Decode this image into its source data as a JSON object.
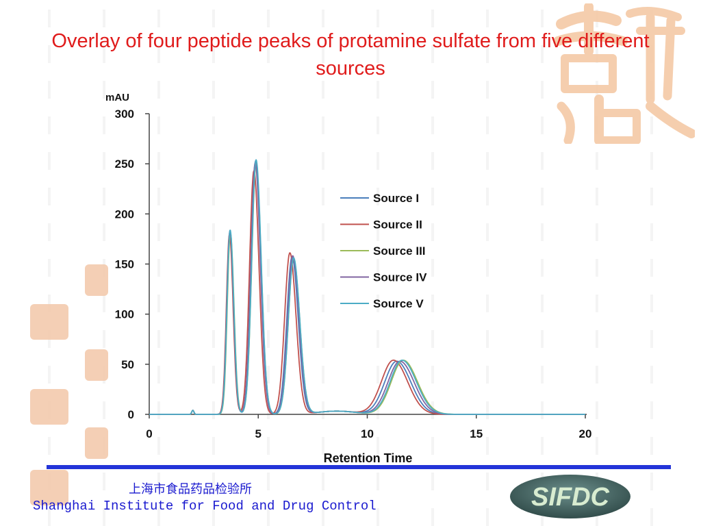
{
  "slide": {
    "title": "Overlay of four peptide peaks of protamine sulfate from five different sources",
    "title_color": "#e01b1b"
  },
  "footer": {
    "institute_cn": "上海市食品药品检验所",
    "institute_en": "Shanghai Institute for Food and Drug Control",
    "logo_text": "SIFDC",
    "text_color": "#1a1acf",
    "rule_color": "#2334d8"
  },
  "chart_data": {
    "type": "line",
    "ylabel": "mAU",
    "xlabel": "Retention Time",
    "xlim": [
      0,
      20
    ],
    "ylim": [
      0,
      300
    ],
    "xticks": [
      "0",
      "5",
      "10",
      "15",
      "20"
    ],
    "yticks": [
      "0",
      "50",
      "100",
      "150",
      "200",
      "250",
      "300"
    ],
    "grid": false,
    "legend_position": "right",
    "peak_model": {
      "baseline_mAU": 0,
      "small_bump": {
        "x": 2.0,
        "height": 4
      }
    },
    "series": [
      {
        "name": "Source I",
        "color": "#4a7ebb",
        "peaks": [
          {
            "rt": 3.7,
            "height": 182
          },
          {
            "rt": 4.88,
            "height": 253
          },
          {
            "rt": 6.55,
            "height": 157
          },
          {
            "rt": 11.35,
            "height": 53
          }
        ]
      },
      {
        "name": "Source II",
        "color": "#c0504d",
        "peaks": [
          {
            "rt": 3.68,
            "height": 180
          },
          {
            "rt": 4.8,
            "height": 243
          },
          {
            "rt": 6.45,
            "height": 161
          },
          {
            "rt": 11.2,
            "height": 54
          }
        ]
      },
      {
        "name": "Source III",
        "color": "#9bbb59",
        "peaks": [
          {
            "rt": 3.72,
            "height": 181
          },
          {
            "rt": 4.9,
            "height": 250
          },
          {
            "rt": 6.62,
            "height": 155
          },
          {
            "rt": 11.65,
            "height": 54
          }
        ]
      },
      {
        "name": "Source IV",
        "color": "#8064a2",
        "peaks": [
          {
            "rt": 3.7,
            "height": 183
          },
          {
            "rt": 4.86,
            "height": 251
          },
          {
            "rt": 6.58,
            "height": 158
          },
          {
            "rt": 11.5,
            "height": 53
          }
        ]
      },
      {
        "name": "Source V",
        "color": "#4bacc6",
        "peaks": [
          {
            "rt": 3.71,
            "height": 184
          },
          {
            "rt": 4.9,
            "height": 254
          },
          {
            "rt": 6.62,
            "height": 156
          },
          {
            "rt": 11.6,
            "height": 54
          }
        ]
      }
    ]
  }
}
